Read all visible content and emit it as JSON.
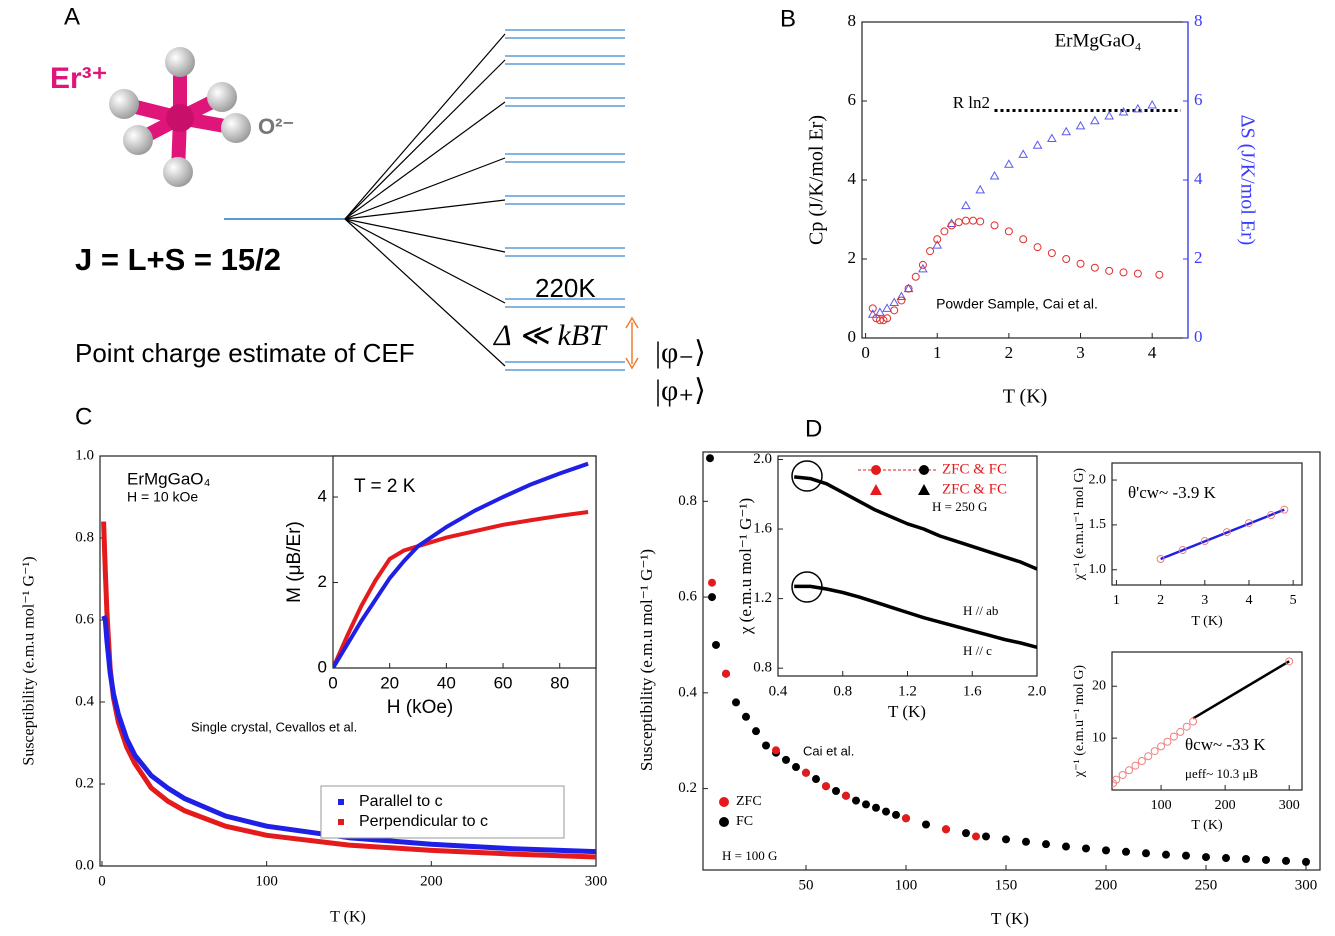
{
  "diagram": {
    "panel_label": "A",
    "ion": "Er³⁺",
    "ligand": "O²⁻",
    "j_label": "J = L+S = 15/2",
    "gap_label": "220K",
    "caption": "Point charge estimate of CEF",
    "delta_label": "Δ ≪ kBT",
    "state_minus": "|φ₋⟩",
    "state_plus": "|φ₊⟩"
  },
  "chart_data": [
    {
      "type": "scatter",
      "panel_label": "B",
      "xlabel": "T (K)",
      "ylabel": "Cp (J/K/mol Er)",
      "y2label": "ΔS (J/K/mol Er)",
      "y2color": "#3b3bff",
      "xlim": [
        -0.05,
        4.5
      ],
      "xticks": [
        0,
        1,
        2,
        3,
        4
      ],
      "ylim": [
        0,
        8
      ],
      "yticks": [
        0,
        2,
        4,
        6,
        8
      ],
      "y2lim": [
        0,
        8
      ],
      "y2ticks": [
        0,
        2,
        4,
        6,
        8
      ],
      "annotations": [
        "ErMgGaO₄",
        "R ln2",
        "Powder Sample, Cai et al."
      ],
      "series": [
        {
          "color": "#e03030",
          "style": "open-circles",
          "x": [
            0.1,
            0.15,
            0.2,
            0.25,
            0.3,
            0.4,
            0.5,
            0.6,
            0.7,
            0.8,
            0.9,
            1.0,
            1.1,
            1.2,
            1.3,
            1.4,
            1.5,
            1.6,
            1.8,
            2.0,
            2.2,
            2.4,
            2.6,
            2.8,
            3.0,
            3.2,
            3.4,
            3.6,
            3.8,
            4.1
          ],
          "values": [
            0.75,
            0.5,
            0.45,
            0.45,
            0.5,
            0.7,
            0.95,
            1.25,
            1.55,
            1.85,
            2.2,
            2.5,
            2.7,
            2.85,
            2.93,
            2.97,
            2.97,
            2.95,
            2.85,
            2.7,
            2.5,
            2.3,
            2.15,
            2.0,
            1.88,
            1.78,
            1.7,
            1.66,
            1.63,
            1.6
          ]
        },
        {
          "color": "#5a5af0",
          "style": "open-triangles",
          "axis": "y2",
          "x": [
            0.1,
            0.2,
            0.3,
            0.4,
            0.5,
            0.6,
            0.8,
            1.0,
            1.2,
            1.4,
            1.6,
            1.8,
            2.0,
            2.2,
            2.4,
            2.6,
            2.8,
            3.0,
            3.2,
            3.4,
            3.6,
            3.8,
            4.0
          ],
          "values": [
            0.6,
            0.65,
            0.75,
            0.9,
            1.05,
            1.25,
            1.75,
            2.35,
            2.9,
            3.35,
            3.75,
            4.1,
            4.4,
            4.65,
            4.88,
            5.05,
            5.22,
            5.37,
            5.5,
            5.62,
            5.72,
            5.8,
            5.9
          ]
        },
        {
          "color": "#000000",
          "style": "dashed",
          "x": [
            1.8,
            4.4
          ],
          "values": [
            5.76,
            5.76
          ]
        }
      ]
    },
    {
      "type": "line",
      "panel_label": "C",
      "xlabel": "T (K)",
      "ylabel": "Susceptibility (e.m.u mol⁻¹ G⁻¹)",
      "xlim": [
        -1.2,
        300
      ],
      "xticks": [
        0,
        100,
        200,
        300
      ],
      "ylim": [
        0,
        1
      ],
      "yticks": [
        {
          "value": 0,
          "label": "0.0"
        },
        0.2,
        0.4,
        0.6,
        0.8,
        {
          "value": 1,
          "label": "1.0"
        }
      ],
      "legend": "lower right",
      "annotations": [
        "ErMgGaO₄",
        "H = 10 kOe",
        "Single crystal, Cevallos et al."
      ],
      "series": [
        {
          "name": "Parallel to c",
          "color": "#1f1fe6",
          "x": [
            1,
            2,
            3,
            5,
            7,
            10,
            15,
            20,
            30,
            40,
            50,
            75,
            100,
            150,
            200,
            250,
            300
          ],
          "values": [
            0.61,
            0.6,
            0.55,
            0.47,
            0.42,
            0.37,
            0.31,
            0.27,
            0.22,
            0.19,
            0.165,
            0.122,
            0.097,
            0.069,
            0.053,
            0.042,
            0.035
          ]
        },
        {
          "name": "Perpendicular to c",
          "color": "#e41a1c",
          "x": [
            1,
            2,
            3,
            5,
            7,
            10,
            15,
            20,
            30,
            40,
            50,
            75,
            100,
            150,
            200,
            250,
            300
          ],
          "values": [
            0.84,
            0.72,
            0.62,
            0.48,
            0.41,
            0.35,
            0.29,
            0.25,
            0.19,
            0.158,
            0.135,
            0.097,
            0.075,
            0.051,
            0.038,
            0.029,
            0.022
          ]
        }
      ]
    },
    {
      "type": "line",
      "xlabel": "H (kOe)",
      "ylabel": "M (μB/Er)",
      "xlim": [
        0,
        92.8
      ],
      "xticks": [
        0,
        20,
        40,
        60,
        80
      ],
      "ylim": [
        0,
        4.96
      ],
      "yticks": [
        0,
        2,
        4
      ],
      "annotations": [
        "T = 2 K"
      ],
      "series": [
        {
          "color": "#1f1fe6",
          "x": [
            0,
            5,
            10,
            15,
            20,
            25,
            30,
            40,
            50,
            60,
            70,
            80,
            90
          ],
          "values": [
            0,
            0.55,
            1.1,
            1.6,
            2.1,
            2.5,
            2.85,
            3.3,
            3.68,
            4.0,
            4.3,
            4.55,
            4.78
          ]
        },
        {
          "color": "#e41a1c",
          "x": [
            0,
            5,
            10,
            15,
            20,
            25,
            30,
            40,
            50,
            60,
            70,
            80,
            90
          ],
          "values": [
            0,
            0.75,
            1.45,
            2.05,
            2.55,
            2.75,
            2.85,
            3.05,
            3.2,
            3.35,
            3.46,
            3.56,
            3.65
          ]
        }
      ]
    },
    {
      "type": "scatter",
      "panel_label": "D",
      "xlabel": "T (K)",
      "ylabel": "Susceptibility (e.m.u mol⁻¹ G⁻¹)",
      "xlim": [
        -1.5,
        307
      ],
      "xticks": [
        50,
        100,
        150,
        200,
        250,
        300
      ],
      "ylim": [
        0.03,
        0.903
      ],
      "yticks": [
        0.2,
        0.4,
        0.6,
        0.8
      ],
      "legend": "lower left",
      "annotations": [
        "H = 100 G",
        "Cai et al."
      ],
      "series": [
        {
          "name": "ZFC",
          "color": "#e41a1c",
          "x": [
            3,
            10,
            35,
            50,
            60,
            70,
            100,
            120,
            135
          ],
          "values": [
            0.63,
            0.44,
            0.28,
            0.233,
            0.205,
            0.185,
            0.138,
            0.115,
            0.1
          ]
        },
        {
          "name": "FC",
          "color": "#000000",
          "x": [
            2,
            3,
            5,
            10,
            15,
            20,
            25,
            30,
            35,
            40,
            45,
            50,
            55,
            60,
            65,
            70,
            75,
            80,
            85,
            90,
            95,
            100,
            110,
            120,
            130,
            140,
            150,
            160,
            170,
            180,
            190,
            200,
            210,
            220,
            230,
            240,
            250,
            260,
            270,
            280,
            290,
            300
          ],
          "values": [
            0.89,
            0.6,
            0.5,
            0.44,
            0.38,
            0.35,
            0.32,
            0.29,
            0.275,
            0.26,
            0.245,
            0.233,
            0.22,
            0.205,
            0.195,
            0.185,
            0.175,
            0.167,
            0.16,
            0.152,
            0.145,
            0.138,
            0.125,
            0.115,
            0.107,
            0.1,
            0.094,
            0.089,
            0.084,
            0.079,
            0.075,
            0.071,
            0.068,
            0.065,
            0.062,
            0.06,
            0.057,
            0.055,
            0.053,
            0.051,
            0.049,
            0.047
          ]
        }
      ]
    },
    {
      "type": "scatter",
      "xlabel": "T (K)",
      "ylabel": "χ (e.m.u mol⁻¹ G⁻¹)",
      "xlim": [
        0.4,
        2.0
      ],
      "xticks": [
        0.4,
        0.8,
        1.2,
        1.6,
        {
          "value": 2,
          "label": "2.0"
        }
      ],
      "ylim": [
        0.755,
        2.02
      ],
      "yticks": [
        0.8,
        1.2,
        1.6,
        {
          "value": 2,
          "label": "2.0"
        }
      ],
      "annotations": [
        "ZFC & FC",
        "ZFC & FC",
        "H = 250 G",
        "H // ab",
        "H // c"
      ],
      "series": [
        {
          "color": "#000000",
          "style": "line",
          "x": [
            0.5,
            0.6,
            0.7,
            0.8,
            0.9,
            1.0,
            1.1,
            1.2,
            1.3,
            1.4,
            1.5,
            1.6,
            1.7,
            1.8,
            1.9,
            2.0
          ],
          "values": [
            1.9,
            1.89,
            1.86,
            1.81,
            1.76,
            1.71,
            1.67,
            1.63,
            1.6,
            1.56,
            1.53,
            1.5,
            1.47,
            1.44,
            1.41,
            1.37
          ]
        },
        {
          "color": "#000000",
          "style": "line",
          "x": [
            0.5,
            0.6,
            0.7,
            0.8,
            0.9,
            1.0,
            1.1,
            1.2,
            1.3,
            1.4,
            1.5,
            1.6,
            1.7,
            1.8,
            1.9,
            2.0
          ],
          "values": [
            1.27,
            1.27,
            1.255,
            1.235,
            1.21,
            1.18,
            1.15,
            1.12,
            1.09,
            1.065,
            1.04,
            1.015,
            0.99,
            0.965,
            0.945,
            0.92
          ]
        }
      ]
    },
    {
      "type": "scatter",
      "xlabel": "T (K)",
      "ylabel": "χ⁻¹ (e.m.u⁻¹ mol G)",
      "xlim": [
        0.9,
        5.2
      ],
      "xticks": [
        1,
        2,
        3,
        4,
        5
      ],
      "ylim": [
        0.83,
        2.19
      ],
      "yticks": [
        {
          "value": 1,
          "label": "1.0"
        },
        1.5,
        {
          "value": 2,
          "label": "2.0"
        }
      ],
      "annotations": [
        "θ'cw~ -3.9 K"
      ],
      "series": [
        {
          "color": "#f08080",
          "style": "open-circles",
          "x": [
            2,
            2.5,
            3,
            3.5,
            4,
            4.5,
            4.8
          ],
          "values": [
            1.12,
            1.22,
            1.32,
            1.42,
            1.52,
            1.61,
            1.67
          ]
        },
        {
          "color": "#1f1fe6",
          "style": "line",
          "x": [
            2,
            4.8
          ],
          "values": [
            1.12,
            1.67
          ]
        }
      ]
    },
    {
      "type": "scatter",
      "xlabel": "T (K)",
      "ylabel": "χ⁻¹ (e.m.u⁻¹ mol G)",
      "xlim": [
        23.4,
        320
      ],
      "xticks": [
        100,
        200,
        300
      ],
      "ylim": [
        0,
        26.6
      ],
      "yticks": [
        10,
        20
      ],
      "annotations": [
        "θcw~ -33 K",
        "μeff~ 10.3 μB"
      ],
      "series": [
        {
          "color": "#f08080",
          "style": "open-circles",
          "x": [
            25,
            30,
            40,
            50,
            60,
            70,
            80,
            90,
            100,
            110,
            120,
            130,
            140,
            150,
            300
          ],
          "values": [
            1.3,
            2,
            2.9,
            3.8,
            4.7,
            5.6,
            6.5,
            7.5,
            8.4,
            9.3,
            10.3,
            11.2,
            12.2,
            13.2,
            24.8
          ]
        },
        {
          "color": "#000000",
          "style": "line",
          "x": [
            150,
            300
          ],
          "values": [
            13.8,
            24.8
          ]
        }
      ]
    }
  ]
}
